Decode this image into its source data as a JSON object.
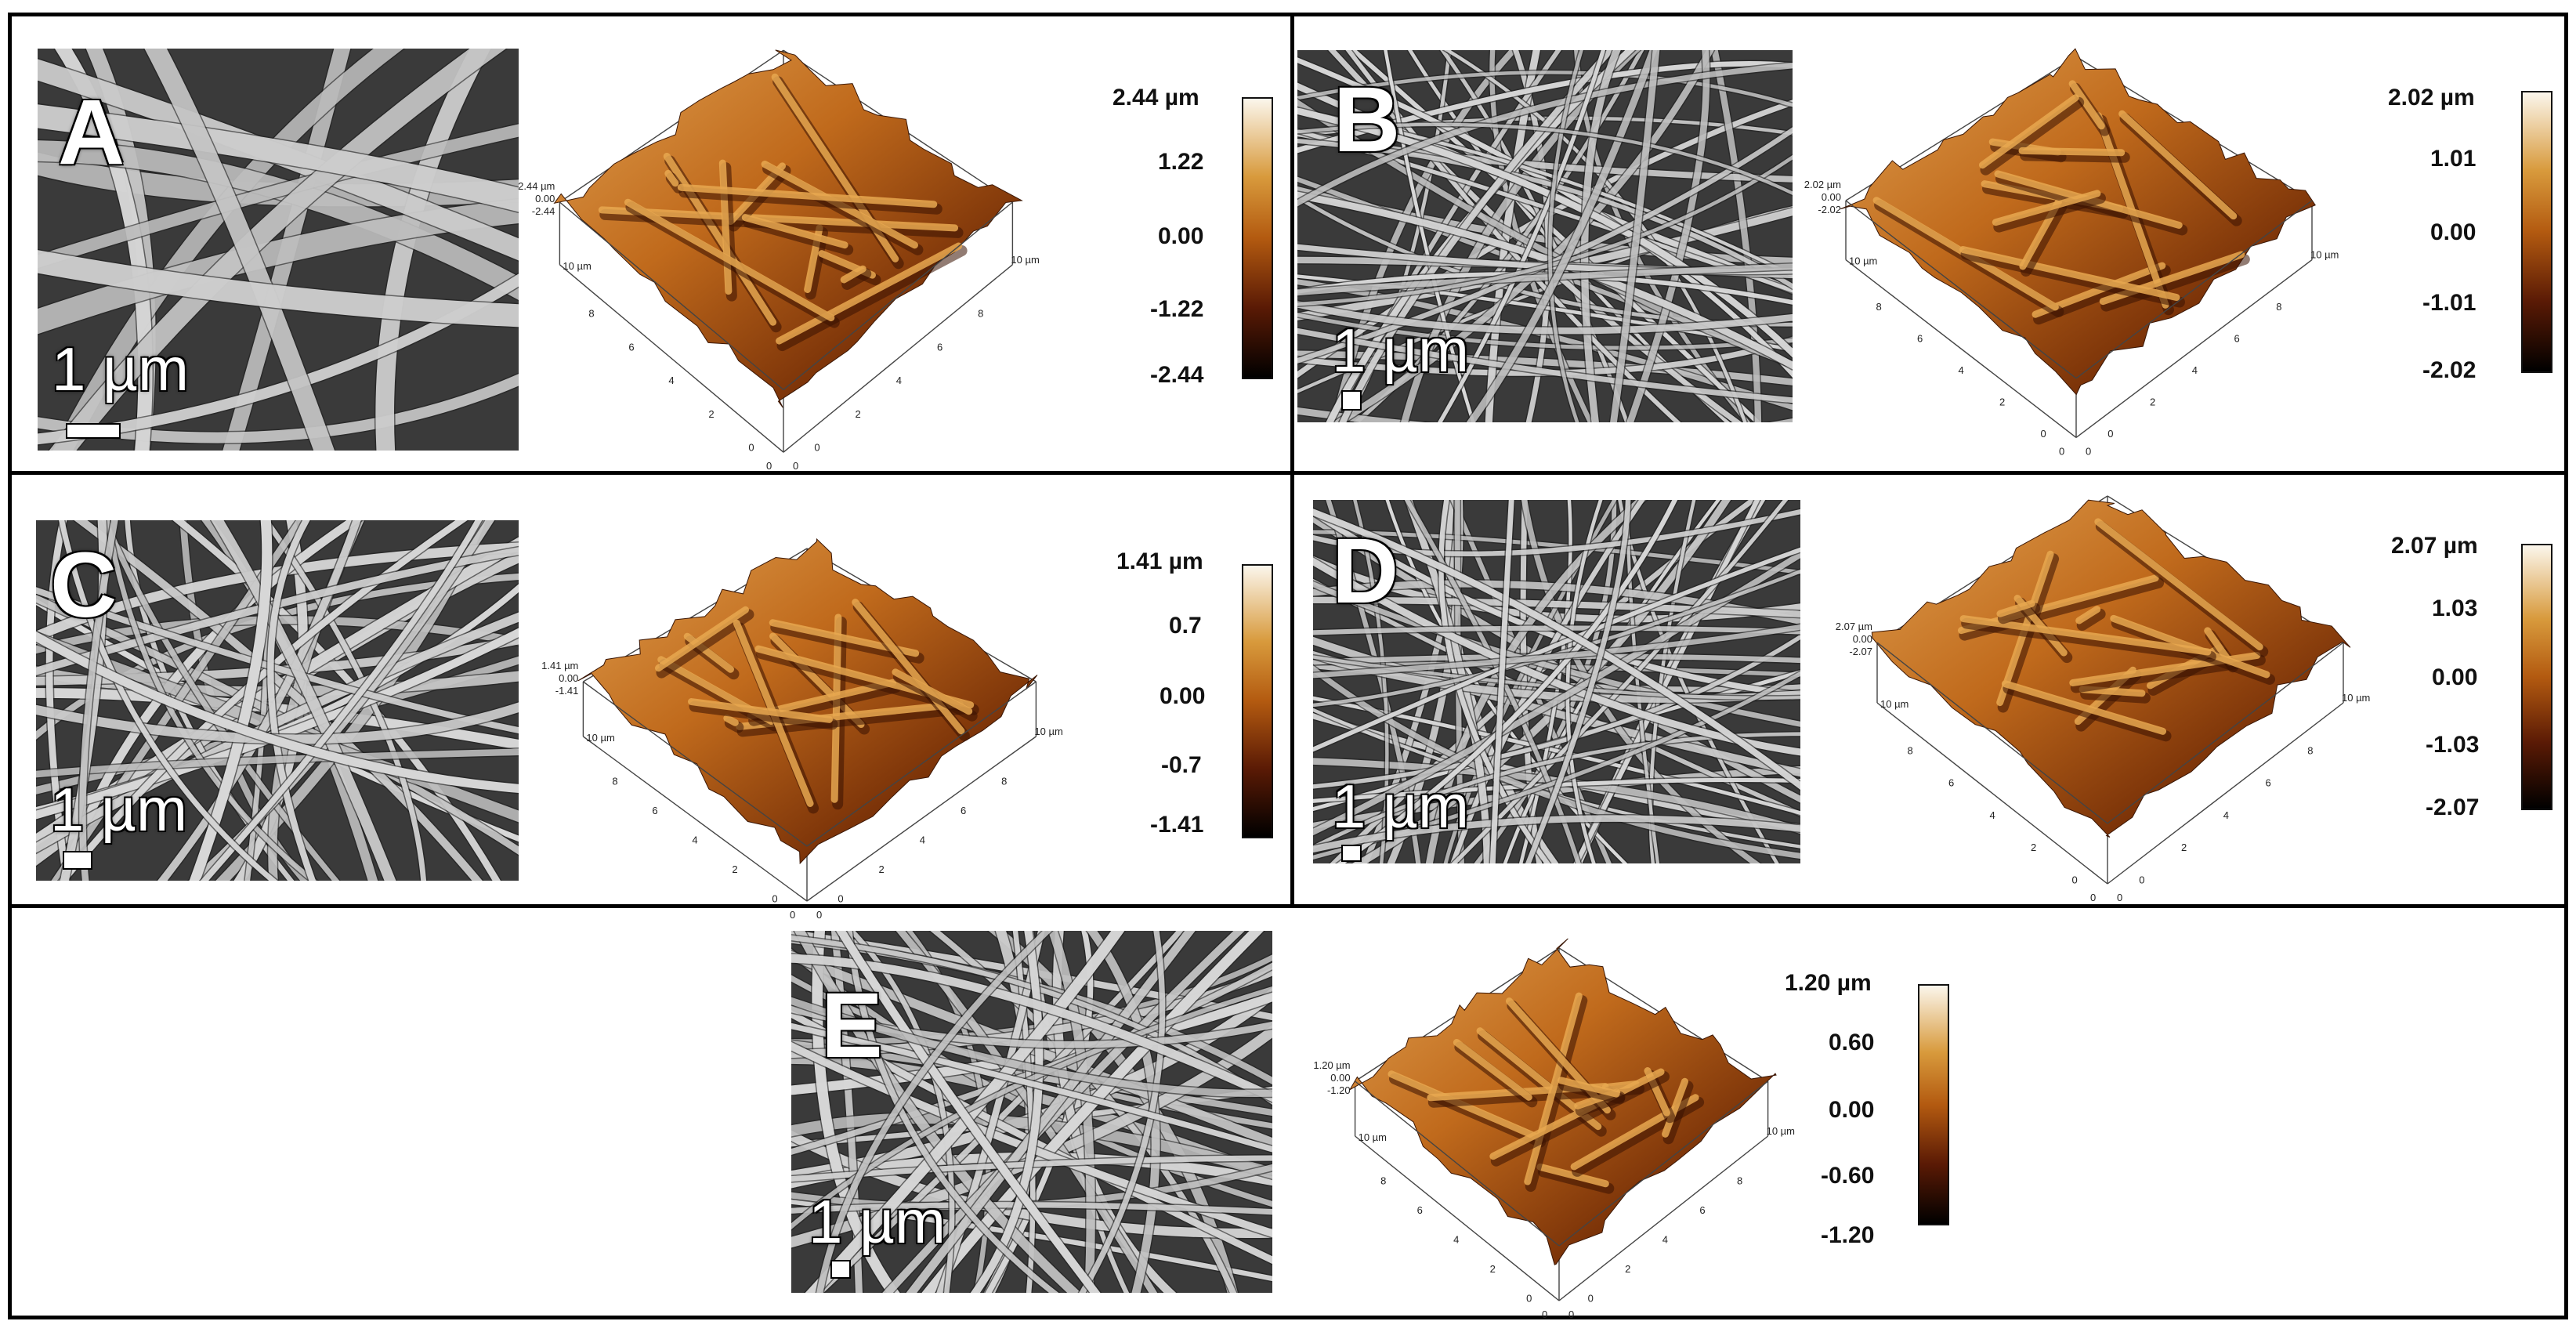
{
  "scale_label": "1 µm",
  "afm_axis_unit": "10 µm",
  "afm_axis_ticks": [
    "0",
    "2",
    "4",
    "6",
    "8"
  ],
  "panels": {
    "A": {
      "letter": "A",
      "height_label": "2.44 µm",
      "cbar_ticks": [
        "2.44 µm",
        "1.22",
        "0.00",
        "-1.22",
        "-2.44"
      ],
      "z_ticks": [
        "2.44 µm",
        "0.00",
        "-2.44"
      ]
    },
    "B": {
      "letter": "B",
      "height_label": "2.02 µm",
      "cbar_ticks": [
        "2.02 µm",
        "1.01",
        "0.00",
        "-1.01",
        "-2.02"
      ],
      "z_ticks": [
        "2.02 µm",
        "0.00",
        "-2.02"
      ]
    },
    "C": {
      "letter": "C",
      "height_label": "1.41 µm",
      "cbar_ticks": [
        "1.41 µm",
        "0.7",
        "0.00",
        "-0.7",
        "-1.41"
      ],
      "z_ticks": [
        "1.41 µm",
        "0.00",
        "-1.41"
      ]
    },
    "D": {
      "letter": "D",
      "height_label": "2.07 µm",
      "cbar_ticks": [
        "2.07 µm",
        "1.03",
        "0.00",
        "-1.03",
        "-2.07"
      ],
      "z_ticks": [
        "2.07 µm",
        "0.00",
        "-2.07"
      ]
    },
    "E": {
      "letter": "E",
      "height_label": "1.20 µm",
      "cbar_ticks": [
        "1.20 µm",
        "0.60",
        "0.00",
        "-0.60",
        "-1.20"
      ],
      "z_ticks": [
        "1.20 µm",
        "0.00",
        "-1.20"
      ]
    }
  },
  "colors": {
    "cbar_top": "#fbf6ec",
    "cbar_high": "#d89a3c",
    "cbar_mid": "#b35a10",
    "cbar_low": "#5a1a05",
    "cbar_bottom": "#000000",
    "fiber": "#d8d8d8",
    "sem_bg": "#3a3a3a"
  }
}
